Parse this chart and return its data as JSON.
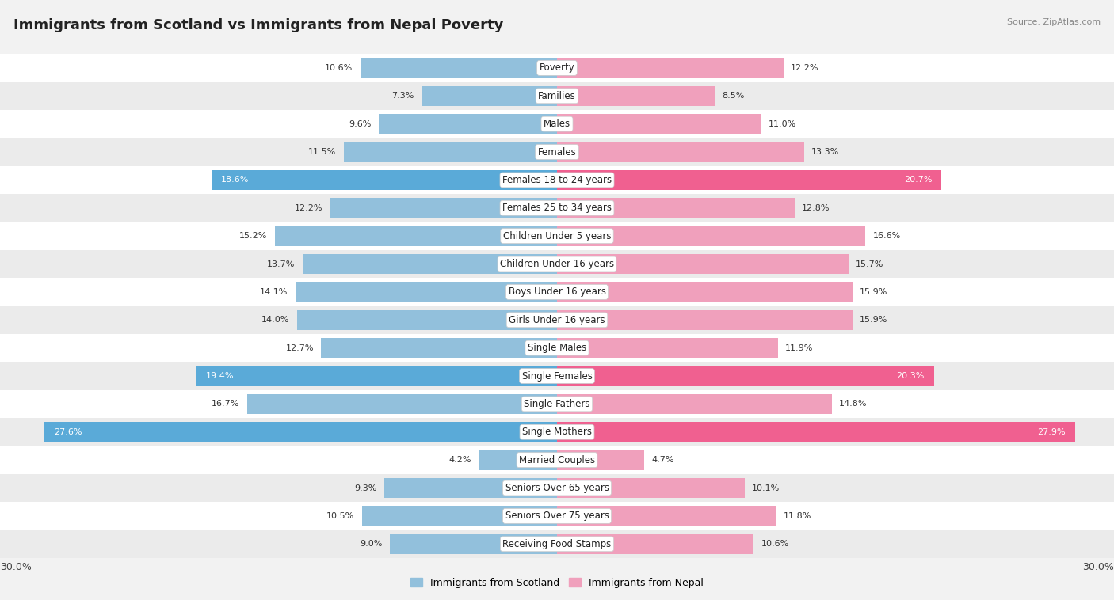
{
  "title": "Immigrants from Scotland vs Immigrants from Nepal Poverty",
  "source": "Source: ZipAtlas.com",
  "categories": [
    "Poverty",
    "Families",
    "Males",
    "Females",
    "Females 18 to 24 years",
    "Females 25 to 34 years",
    "Children Under 5 years",
    "Children Under 16 years",
    "Boys Under 16 years",
    "Girls Under 16 years",
    "Single Males",
    "Single Females",
    "Single Fathers",
    "Single Mothers",
    "Married Couples",
    "Seniors Over 65 years",
    "Seniors Over 75 years",
    "Receiving Food Stamps"
  ],
  "scotland_values": [
    10.6,
    7.3,
    9.6,
    11.5,
    18.6,
    12.2,
    15.2,
    13.7,
    14.1,
    14.0,
    12.7,
    19.4,
    16.7,
    27.6,
    4.2,
    9.3,
    10.5,
    9.0
  ],
  "nepal_values": [
    12.2,
    8.5,
    11.0,
    13.3,
    20.7,
    12.8,
    16.6,
    15.7,
    15.9,
    15.9,
    11.9,
    20.3,
    14.8,
    27.9,
    4.7,
    10.1,
    11.8,
    10.6
  ],
  "scotland_color": "#92c0dc",
  "nepal_color": "#f0a0bc",
  "scotland_highlight_color": "#5aaad8",
  "nepal_highlight_color": "#f06090",
  "highlight_threshold": 17.0,
  "background_color": "#f2f2f2",
  "row_light": "#ffffff",
  "row_dark": "#ebebeb",
  "max_value": 30.0,
  "legend_scotland": "Immigrants from Scotland",
  "legend_nepal": "Immigrants from Nepal"
}
